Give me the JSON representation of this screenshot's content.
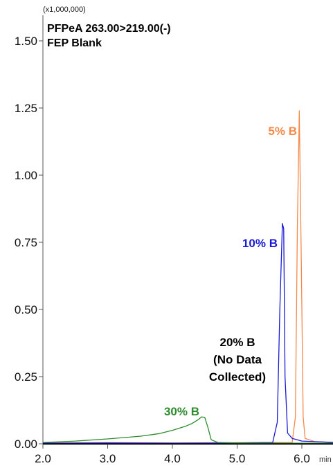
{
  "chart_data": {
    "type": "line",
    "title": "PFPeA 263.00>219.00(-)",
    "subtitle": "FEP Blank",
    "y_scale_label": "(x1,000,000)",
    "xlabel": "min",
    "ylabel": "",
    "xlim": [
      2.0,
      6.5
    ],
    "ylim": [
      -0.02,
      1.62
    ],
    "x_ticks": [
      2.0,
      3.0,
      4.0,
      5.0,
      6.0
    ],
    "x_tick_labels": [
      "2.0",
      "3.0",
      "4.0",
      "5.0",
      "6.0"
    ],
    "y_ticks": [
      0.0,
      0.25,
      0.5,
      0.75,
      1.0,
      1.25,
      1.5
    ],
    "y_tick_labels": [
      "0.00",
      "0.25",
      "0.50",
      "0.75",
      "1.00",
      "1.25",
      "1.50"
    ],
    "grid": false,
    "series": [
      {
        "name": "5% B",
        "color": "#f5894a",
        "x": [
          2.0,
          3.0,
          4.0,
          5.0,
          5.85,
          5.9,
          5.93,
          5.96,
          5.99,
          6.02,
          6.05,
          6.2,
          6.5
        ],
        "y": [
          0.003,
          0.004,
          0.003,
          0.004,
          0.005,
          0.1,
          0.8,
          1.24,
          0.7,
          0.1,
          0.02,
          0.008,
          0.005
        ]
      },
      {
        "name": "10% B",
        "color": "#1a1ad6",
        "x": [
          2.0,
          3.0,
          4.0,
          5.0,
          5.55,
          5.62,
          5.66,
          5.7,
          5.72,
          5.74,
          5.78,
          5.85,
          6.0,
          6.5
        ],
        "y": [
          0.002,
          0.003,
          0.002,
          0.003,
          0.005,
          0.08,
          0.5,
          0.82,
          0.8,
          0.25,
          0.04,
          0.02,
          0.01,
          0.005
        ]
      },
      {
        "name": "30% B",
        "color": "#2e8b2e",
        "x": [
          2.0,
          2.5,
          3.0,
          3.5,
          3.8,
          4.0,
          4.2,
          4.3,
          4.4,
          4.45,
          4.5,
          4.55,
          4.6,
          4.7,
          5.0,
          6.0,
          6.5
        ],
        "y": [
          0.005,
          0.01,
          0.018,
          0.028,
          0.038,
          0.05,
          0.065,
          0.075,
          0.09,
          0.1,
          0.098,
          0.06,
          0.015,
          0.005,
          0.003,
          0.002,
          0.002
        ]
      },
      {
        "name": "20% B",
        "color": "#000000",
        "x": [
          2.0,
          6.5
        ],
        "y": [
          0.0,
          0.0
        ]
      }
    ],
    "annotations": [
      {
        "text": "5% B",
        "color": "#f5894a"
      },
      {
        "text": "10% B",
        "color": "#1a1ad6"
      },
      {
        "text": "20% B",
        "color": "#000000"
      },
      {
        "text": "(No Data",
        "color": "#000000"
      },
      {
        "text": "Collected)",
        "color": "#000000"
      },
      {
        "text": "30% B",
        "color": "#2e8b2e"
      }
    ]
  }
}
